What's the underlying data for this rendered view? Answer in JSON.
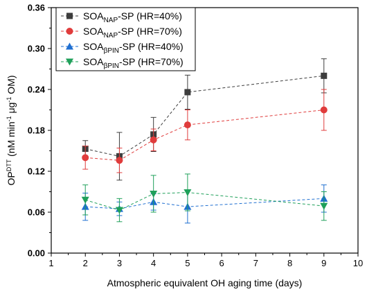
{
  "chart_data": {
    "type": "scatter",
    "xlabel": "Atmospheric equivalent OH aging time (days)",
    "ylabel": "OP^DTT (nM min^-1 μg^-1 OM)",
    "xlim": [
      1,
      10
    ],
    "ylim": [
      0,
      0.36
    ],
    "xticks": [
      "1",
      "2",
      "3",
      "4",
      "5",
      "6",
      "7",
      "8",
      "9",
      "10"
    ],
    "yticks": [
      "0.00",
      "0.06",
      "0.12",
      "0.18",
      "0.24",
      "0.30",
      "0.36"
    ],
    "grid": false,
    "legend_position": "top-left",
    "series": [
      {
        "name": "SOA_NAP-SP (HR=40%)",
        "legend": {
          "base": "SOA",
          "sub": "NAP",
          "rest": "-SP (HR=40%)"
        },
        "color": "#3d3d3d",
        "marker": "square",
        "x": [
          2,
          3,
          4,
          5,
          9
        ],
        "y": [
          0.153,
          0.142,
          0.174,
          0.236,
          0.26
        ],
        "err": [
          0.012,
          0.035,
          0.025,
          0.025,
          0.025
        ]
      },
      {
        "name": "SOA_NAP-SP (HR=70%)",
        "legend": {
          "base": "SOA",
          "sub": "NAP",
          "rest": "-SP (HR=70%)"
        },
        "color": "#e03c3c",
        "marker": "circle",
        "x": [
          2,
          3,
          4,
          5,
          9
        ],
        "y": [
          0.14,
          0.136,
          0.166,
          0.188,
          0.21
        ],
        "err": [
          0.017,
          0.018,
          0.016,
          0.022,
          0.03
        ]
      },
      {
        "name": "SOA_βPIN-SP (HR=40%)",
        "legend": {
          "base": "SOA",
          "sub": "βPIN",
          "rest": "-SP (HR=40%)"
        },
        "color": "#1f6fd1",
        "marker": "triangle-up",
        "x": [
          2,
          3,
          4,
          5,
          9
        ],
        "y": [
          0.068,
          0.065,
          0.075,
          0.068,
          0.08
        ],
        "err": [
          0.02,
          0.01,
          0.012,
          0.024,
          0.02
        ]
      },
      {
        "name": "SOA_βPIN-SP (HR=70%)",
        "legend": {
          "base": "SOA",
          "sub": "βPIN",
          "rest": "-SP (HR=70%)"
        },
        "color": "#1fa05a",
        "marker": "triangle-down",
        "x": [
          2,
          3,
          4,
          5,
          9
        ],
        "y": [
          0.078,
          0.063,
          0.087,
          0.089,
          0.069
        ],
        "err": [
          0.022,
          0.017,
          0.027,
          0.027,
          0.021
        ]
      }
    ]
  }
}
